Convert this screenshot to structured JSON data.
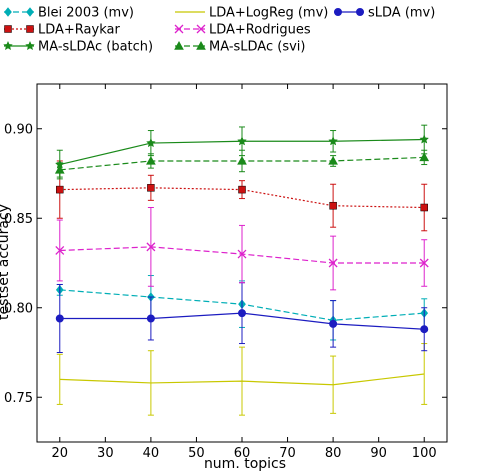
{
  "chart_data": {
    "type": "line",
    "title": "",
    "xlabel": "num. topics",
    "ylabel": "testset accuracy",
    "xlim": [
      15,
      105
    ],
    "ylim": [
      0.725,
      0.925
    ],
    "x_ticks": [
      20,
      30,
      40,
      50,
      60,
      70,
      80,
      90,
      100
    ],
    "y_ticks": [
      0.75,
      0.8,
      0.85,
      0.9
    ],
    "y_tick_labels": [
      "0.75",
      "0.80",
      "0.85",
      "0.90"
    ],
    "x": [
      20,
      40,
      60,
      80,
      100
    ],
    "grid": false,
    "legend_placement": "top, outside plot, 3 columns",
    "series": [
      {
        "name": "Blei 2003 (mv)",
        "color": "#00aeb6",
        "linestyle": "dashed",
        "marker": "diamond",
        "values": [
          0.81,
          0.806,
          0.802,
          0.793,
          0.797
        ],
        "errors": [
          0.003,
          0.012,
          0.013,
          0.011,
          0.008
        ]
      },
      {
        "name": "LDA+LogReg (mv)",
        "color": "#c8c800",
        "linestyle": "solid",
        "marker": "none",
        "values": [
          0.76,
          0.758,
          0.759,
          0.757,
          0.763
        ],
        "errors": [
          0.014,
          0.018,
          0.019,
          0.016,
          0.017
        ]
      },
      {
        "name": "sLDA (mv)",
        "color": "#1c1cc0",
        "linestyle": "solid",
        "marker": "circle",
        "values": [
          0.794,
          0.794,
          0.797,
          0.791,
          0.788
        ],
        "errors": [
          0.019,
          0.012,
          0.017,
          0.013,
          0.012
        ]
      },
      {
        "name": "LDA+Raykar",
        "color": "#cc1111",
        "linestyle": "dotted",
        "marker": "square",
        "values": [
          0.866,
          0.867,
          0.866,
          0.857,
          0.856
        ],
        "errors": [
          0.016,
          0.007,
          0.005,
          0.012,
          0.013
        ]
      },
      {
        "name": "LDA+Rodrigues",
        "color": "#dd22cc",
        "linestyle": "dashed",
        "marker": "x",
        "values": [
          0.832,
          0.834,
          0.83,
          0.825,
          0.825
        ],
        "errors": [
          0.017,
          0.022,
          0.016,
          0.015,
          0.013
        ]
      },
      {
        "name": "MA-sLDAc (batch)",
        "color": "#1a8a1a",
        "linestyle": "solid",
        "marker": "star",
        "values": [
          0.88,
          0.892,
          0.893,
          0.893,
          0.894
        ],
        "errors": [
          0.008,
          0.007,
          0.008,
          0.006,
          0.008
        ]
      },
      {
        "name": "MA-sLDAc (svi)",
        "color": "#1a8a1a",
        "linestyle": "dashed",
        "marker": "triangle",
        "values": [
          0.877,
          0.882,
          0.882,
          0.882,
          0.884
        ],
        "errors": [
          0.004,
          0.004,
          0.006,
          0.003,
          0.004
        ]
      }
    ]
  }
}
